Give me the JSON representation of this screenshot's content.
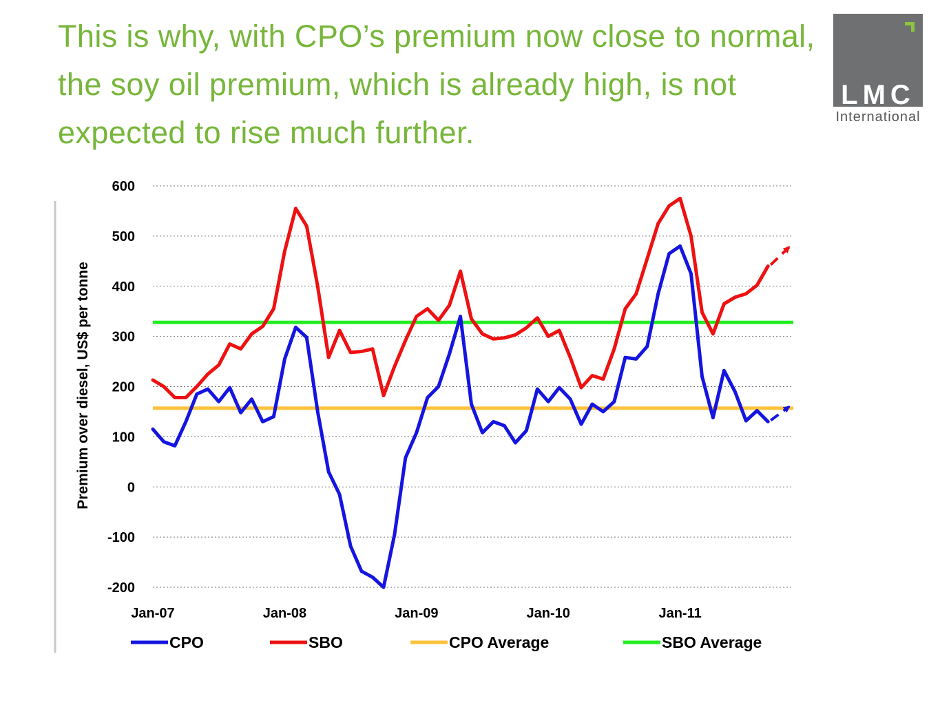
{
  "slide": {
    "headline": "This is why, with CPO’s premium now close to normal, the soy oil premium, which is already high, is not expected to rise much further.",
    "logo_mark": "LMC",
    "logo_sub": "International"
  },
  "colors": {
    "headline": "#77b63a",
    "cpo": "#1515e0",
    "sbo": "#ee1111",
    "cpo_average": "#fcc23c",
    "sbo_average": "#22ee22",
    "logo_bg": "#6e7072",
    "logo_accent": "#8cc63f"
  },
  "chart_data": {
    "type": "line",
    "ylabel": "Premium over diesel, US$ per tonne",
    "ylim": [
      -200,
      600
    ],
    "yticks": [
      600,
      500,
      400,
      300,
      200,
      100,
      0,
      -100,
      -200
    ],
    "xticks": [
      "Jan-07",
      "Jan-08",
      "Jan-09",
      "Jan-10",
      "Jan-11"
    ],
    "x_start": "Jan-07",
    "x_step": "month",
    "grid": "horizontal dotted",
    "legend_position": "bottom",
    "series": [
      {
        "name": "CPO",
        "color": "#1515e0",
        "values": [
          115,
          90,
          82,
          130,
          185,
          195,
          170,
          198,
          148,
          175,
          130,
          140,
          255,
          318,
          298,
          150,
          30,
          -15,
          -118,
          -168,
          -180,
          -200,
          -95,
          58,
          108,
          178,
          200,
          265,
          340,
          165,
          108,
          130,
          122,
          88,
          112,
          195,
          170,
          198,
          175,
          125,
          165,
          150,
          170,
          258,
          255,
          280,
          385,
          465,
          480,
          425,
          220,
          138,
          232,
          190,
          132,
          152,
          130
        ],
        "projection_end": 160
      },
      {
        "name": "SBO",
        "color": "#ee1111",
        "values": [
          213,
          200,
          178,
          178,
          200,
          225,
          243,
          285,
          275,
          305,
          320,
          355,
          470,
          555,
          520,
          400,
          258,
          312,
          268,
          270,
          275,
          182,
          240,
          292,
          340,
          355,
          332,
          362,
          430,
          335,
          305,
          295,
          297,
          303,
          317,
          337,
          300,
          312,
          258,
          198,
          222,
          215,
          275,
          355,
          385,
          455,
          525,
          560,
          575,
          500,
          348,
          305,
          365,
          378,
          385,
          402,
          440
        ],
        "projection_end": 478
      },
      {
        "name": "CPO Average",
        "color": "#fcc23c",
        "constant": 157
      },
      {
        "name": "SBO Average",
        "color": "#22ee22",
        "constant": 328
      }
    ]
  }
}
